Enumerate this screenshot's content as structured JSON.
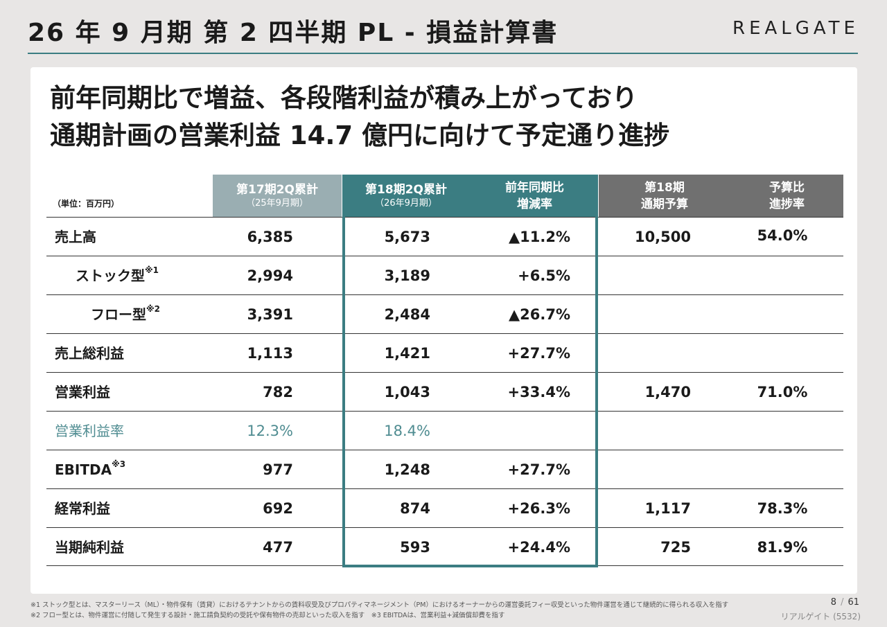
{
  "header": {
    "title": "26 年 9 月期 第 2 四半期 PL - 損益計算書",
    "logo": "REALGATE"
  },
  "headline": {
    "line1": "前年同期比で増益、各段階利益が積み上がっており",
    "line2": "通期計画の営業利益 14.7 億円に向けて予定通り進捗"
  },
  "table": {
    "unit": "（単位：百万円）",
    "columns": {
      "prev": {
        "l1": "第17期2Q累計",
        "l2": "（25年9月期）"
      },
      "cur": {
        "l1": "第18期2Q累計",
        "l2": "（26年9月期）"
      },
      "yoy": {
        "l1": "前年同期比",
        "l2": "増減率"
      },
      "plan": {
        "l1": "第18期",
        "l2": "通期予算"
      },
      "ratio": {
        "l1": "予算比",
        "l2": "進捗率"
      }
    },
    "rows": [
      {
        "name": "売上高",
        "sup": "",
        "prev": "6,385",
        "cur": "5,673",
        "yoy": "▲11.2%",
        "plan": "10,500",
        "ratio": "54.0%"
      },
      {
        "name": "ストック型",
        "sup": "※1",
        "prev": "2,994",
        "cur": "3,189",
        "yoy": "+6.5%",
        "plan": "",
        "ratio": ""
      },
      {
        "name": "フロー型",
        "sup": "※2",
        "prev": "3,391",
        "cur": "2,484",
        "yoy": "▲26.7%",
        "plan": "",
        "ratio": ""
      },
      {
        "name": "売上総利益",
        "sup": "",
        "prev": "1,113",
        "cur": "1,421",
        "yoy": "+27.7%",
        "plan": "",
        "ratio": ""
      },
      {
        "name": "営業利益",
        "sup": "",
        "prev": "782",
        "cur": "1,043",
        "yoy": "+33.4%",
        "plan": "1,470",
        "ratio": "71.0%"
      },
      {
        "name": "営業利益率",
        "sup": "",
        "prev": "12.3%",
        "cur": "18.4%",
        "yoy": "",
        "plan": "",
        "ratio": ""
      },
      {
        "name": "EBITDA",
        "sup": "※3",
        "prev": "977",
        "cur": "1,248",
        "yoy": "+27.7%",
        "plan": "",
        "ratio": ""
      },
      {
        "name": "経常利益",
        "sup": "",
        "prev": "692",
        "cur": "874",
        "yoy": "+26.3%",
        "plan": "1,117",
        "ratio": "78.3%"
      },
      {
        "name": "当期純利益",
        "sup": "",
        "prev": "477",
        "cur": "593",
        "yoy": "+24.4%",
        "plan": "725",
        "ratio": "81.9%"
      }
    ]
  },
  "footnotes": {
    "note1": "※1 ストック型とは、マスターリース（ML）・物件保有（賃貸）におけるテナントからの賃料収受及びプロパティマネージメント（PM）におけるオーナーからの運営委託フィー収受といった物件運営を通じて継続的に得られる収入を指す",
    "note2": "※2 フロー型とは、物件運営に付随して発生する設計・施工請負契約の受託や保有物件の売却といった収入を指す　※3 EBITDAは、営業利益+減価償却費を指す"
  },
  "page": {
    "current": "8",
    "total": "61",
    "company": "リアルゲイト (5532)"
  },
  "colors": {
    "accent": "#3b7d82",
    "prev_header": "#9aaeb2",
    "plan_header": "#707070",
    "margin_text": "#4f8c91"
  }
}
